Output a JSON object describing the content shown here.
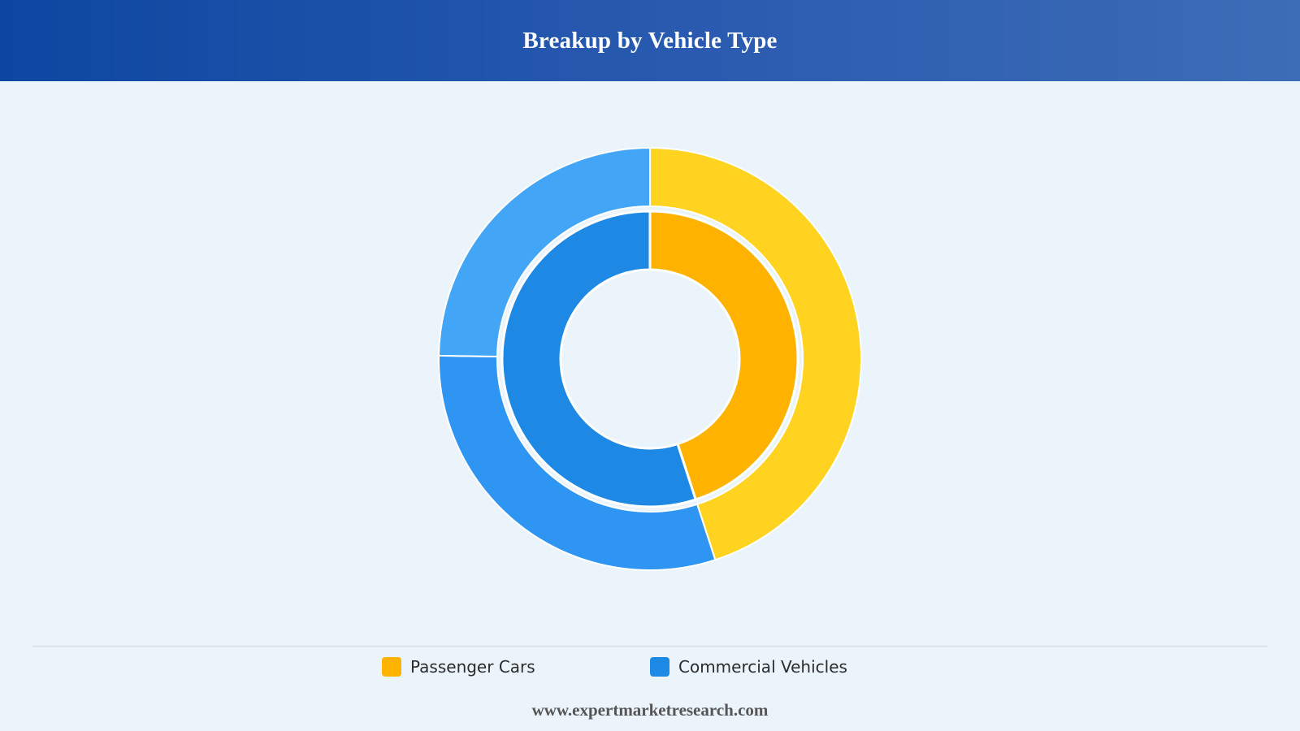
{
  "header": {
    "title": "Breakup by Vehicle Type"
  },
  "chart_data": {
    "type": "pie",
    "variant": "nested-donut",
    "categories": [
      "Passenger Cars",
      "Commercial Vehicles"
    ],
    "rings": [
      {
        "ring": "inner",
        "values": [
          45,
          55
        ],
        "colors": [
          "#ffb300",
          "#1e88e5"
        ]
      },
      {
        "ring": "outer",
        "values": [
          45,
          55
        ],
        "colors": [
          "#ffd320",
          "#42a5f5"
        ],
        "colors_secondary": [
          null,
          "#2e96f2"
        ]
      }
    ],
    "legend_position": "bottom",
    "legend": [
      {
        "label": "Passenger Cars",
        "color": "#ffb300"
      },
      {
        "label": "Commercial Vehicles",
        "color": "#1e88e5"
      }
    ]
  },
  "footer": {
    "text": "www.expertmarketresearch.com"
  }
}
